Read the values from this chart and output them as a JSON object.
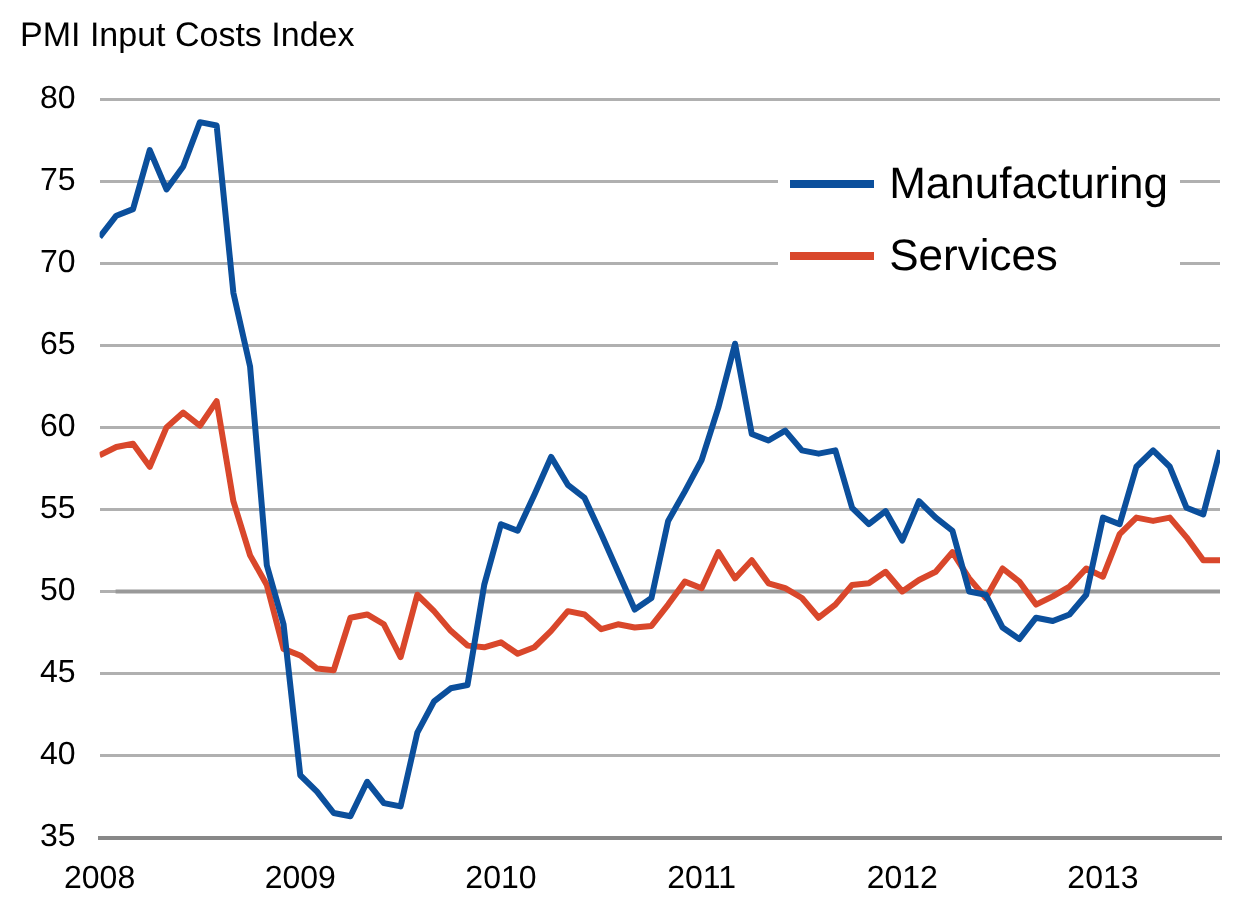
{
  "chart_data": {
    "type": "line",
    "title": "PMI Input Costs Index",
    "x": [
      "2008-01",
      "2008-02",
      "2008-03",
      "2008-04",
      "2008-05",
      "2008-06",
      "2008-07",
      "2008-08",
      "2008-09",
      "2008-10",
      "2008-11",
      "2008-12",
      "2009-01",
      "2009-02",
      "2009-03",
      "2009-04",
      "2009-05",
      "2009-06",
      "2009-07",
      "2009-08",
      "2009-09",
      "2009-10",
      "2009-11",
      "2009-12",
      "2010-01",
      "2010-02",
      "2010-03",
      "2010-04",
      "2010-05",
      "2010-06",
      "2010-07",
      "2010-08",
      "2010-09",
      "2010-10",
      "2010-11",
      "2010-12",
      "2011-01",
      "2011-02",
      "2011-03",
      "2011-04",
      "2011-05",
      "2011-06",
      "2011-07",
      "2011-08",
      "2011-09",
      "2011-10",
      "2011-11",
      "2011-12",
      "2012-01",
      "2012-02",
      "2012-03",
      "2012-04",
      "2012-05",
      "2012-06",
      "2012-07",
      "2012-08",
      "2012-09",
      "2012-10",
      "2012-11",
      "2012-12",
      "2013-01",
      "2013-02",
      "2013-03",
      "2013-04",
      "2013-05",
      "2013-06",
      "2013-07",
      "2013-08"
    ],
    "series": [
      {
        "name": "Manufacturing",
        "color": "#0b4f9c",
        "values": [
          71.6,
          72.9,
          73.3,
          76.9,
          74.5,
          75.9,
          78.6,
          78.4,
          68.2,
          63.7,
          51.6,
          48.0,
          38.8,
          37.8,
          36.5,
          36.3,
          38.4,
          37.1,
          36.9,
          41.4,
          43.3,
          44.1,
          44.3,
          50.4,
          54.1,
          53.7,
          55.9,
          58.2,
          56.5,
          55.7,
          53.5,
          51.2,
          48.9,
          49.6,
          54.3,
          56.1,
          58.0,
          61.2,
          65.1,
          59.6,
          59.2,
          59.8,
          58.6,
          58.4,
          58.6,
          55.1,
          54.1,
          54.9,
          53.1,
          55.5,
          54.5,
          53.7,
          50.0,
          49.8,
          47.8,
          47.1,
          48.4,
          48.2,
          48.6,
          49.8,
          54.5,
          54.1,
          57.6,
          58.6,
          57.6,
          55.1,
          54.7,
          58.6
        ]
      },
      {
        "name": "Services",
        "color": "#d9472b",
        "values": [
          58.3,
          58.8,
          59.0,
          57.6,
          60.0,
          60.9,
          60.1,
          61.6,
          55.5,
          52.2,
          50.4,
          46.5,
          46.1,
          45.3,
          45.2,
          48.4,
          48.6,
          48.0,
          46.0,
          49.8,
          48.8,
          47.6,
          46.7,
          46.6,
          46.9,
          46.2,
          46.6,
          47.6,
          48.8,
          48.6,
          47.7,
          48.0,
          47.8,
          47.9,
          49.2,
          50.6,
          50.2,
          52.4,
          50.8,
          51.9,
          50.5,
          50.2,
          49.6,
          48.4,
          49.2,
          50.4,
          50.5,
          51.2,
          50.0,
          50.7,
          51.2,
          52.4,
          50.8,
          49.6,
          51.4,
          50.6,
          49.2,
          49.7,
          50.3,
          51.4,
          50.9,
          53.5,
          54.5,
          54.3,
          54.5,
          53.3,
          51.9,
          51.9
        ]
      }
    ],
    "xlim": [
      "2008-01",
      "2013-08"
    ],
    "xticks": [
      "2008",
      "2009",
      "2010",
      "2011",
      "2012",
      "2013"
    ],
    "ylim": [
      35,
      80
    ],
    "yticks": [
      35,
      40,
      45,
      50,
      55,
      60,
      65,
      70,
      75,
      80
    ],
    "ref_lines": [
      {
        "axis": "y",
        "value": 50,
        "color": "#999999"
      }
    ],
    "grid": "y",
    "legend": "top right",
    "marker": "none",
    "line_style": "solid"
  }
}
